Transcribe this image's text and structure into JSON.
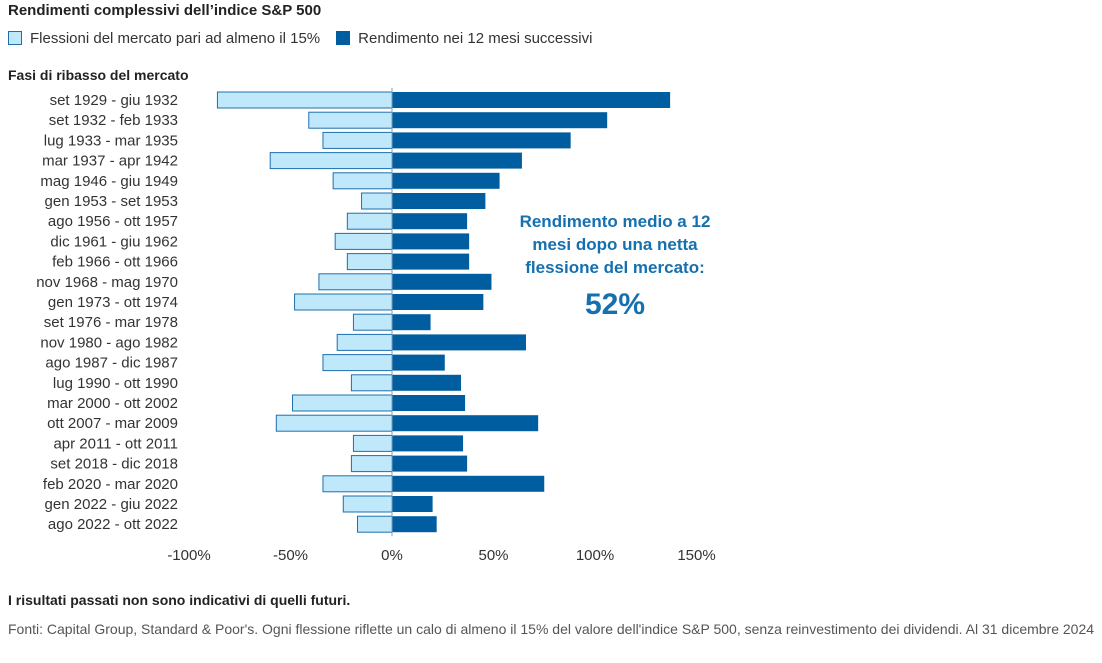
{
  "colors": {
    "decline": "#bfe9fb",
    "decline_border": "#1f6fae",
    "return": "#005da0",
    "annotation": "#1570b0"
  },
  "legend": {
    "decline_label": "Flessioni del mercato pari ad almeno il 15%",
    "return_label": "Rendimento nei 12 mesi successivi"
  },
  "annotation": {
    "text": "Rendimento medio a 12 mesi dopo una netta flessione del mercato:",
    "value": "52%"
  },
  "footer": {
    "disclaimer": "I risultati passati non sono indicativi di quelli futuri.",
    "source": "Fonti: Capital Group, Standard & Poor's. Ogni flessione riflette un calo di almeno il 15% del valore dell'indice S&P 500, senza reinvestimento dei dividendi. Al 31 dicembre 2024"
  },
  "chart_data": {
    "type": "bar",
    "orientation": "horizontal",
    "title": "Rendimenti complessivi dell’indice S&P 500",
    "ylabel": "Fasi di ribasso del mercato",
    "xlim": [
      -100,
      150
    ],
    "xticks": [
      -100,
      -50,
      0,
      50,
      100,
      150
    ],
    "xtick_labels": [
      "-100%",
      "-50%",
      "0%",
      "50%",
      "100%",
      "150%"
    ],
    "categories": [
      "set 1929 - giu 1932",
      "set 1932 - feb 1933",
      "lug 1933 - mar 1935",
      "mar 1937 - apr 1942",
      "mag 1946 - giu 1949",
      "gen 1953 - set 1953",
      "ago 1956 - ott 1957",
      "dic 1961 - giu 1962",
      "feb 1966 - ott 1966",
      "nov 1968 - mag 1970",
      "gen 1973 - ott 1974",
      "set 1976 - mar 1978",
      "nov 1980 - ago 1982",
      "ago 1987 - dic 1987",
      "lug 1990 - ott 1990",
      "mar 2000 - ott 2002",
      "ott 2007 - mar 2009",
      "apr 2011 - ott 2011",
      "set 2018 - dic 2018",
      "feb 2020 - mar 2020",
      "gen 2022 - giu 2022",
      "ago 2022 - ott 2022"
    ],
    "series": [
      {
        "name": "Flessioni del mercato pari ad almeno il 15%",
        "values": [
          -86,
          -41,
          -34,
          -60,
          -29,
          -15,
          -22,
          -28,
          -22,
          -36,
          -48,
          -19,
          -27,
          -34,
          -20,
          -49,
          -57,
          -19,
          -20,
          -34,
          -24,
          -17
        ]
      },
      {
        "name": "Rendimento nei 12 mesi successivi",
        "values": [
          137,
          106,
          88,
          64,
          53,
          46,
          37,
          38,
          38,
          49,
          45,
          19,
          66,
          26,
          34,
          36,
          72,
          35,
          37,
          75,
          20,
          22
        ]
      }
    ]
  }
}
